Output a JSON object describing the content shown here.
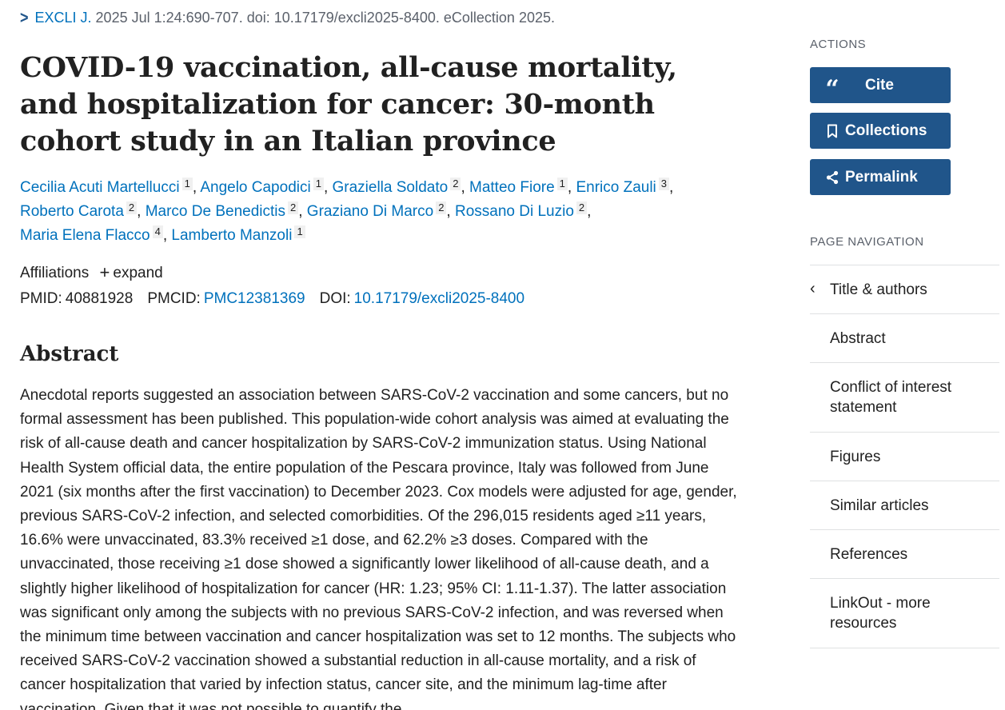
{
  "journal": {
    "name": "EXCLI J.",
    "citation": " 2025 Jul 1:24:690-707. doi: 10.17179/excli2025-8400. eCollection 2025."
  },
  "title": "COVID-19 vaccination, all-cause mortality, and hospitalization for cancer: 30-month cohort study in an Italian province",
  "authors": [
    {
      "name": "Cecilia Acuti Martellucci",
      "aff": "1"
    },
    {
      "name": "Angelo Capodici",
      "aff": "1"
    },
    {
      "name": "Graziella Soldato",
      "aff": "2"
    },
    {
      "name": "Matteo Fiore",
      "aff": "1"
    },
    {
      "name": "Enrico Zauli",
      "aff": "3"
    },
    {
      "name": "Roberto Carota",
      "aff": "2"
    },
    {
      "name": "Marco De Benedictis",
      "aff": "2"
    },
    {
      "name": "Graziano Di Marco",
      "aff": "2"
    },
    {
      "name": "Rossano Di Luzio",
      "aff": "2"
    },
    {
      "name": "Maria Elena Flacco",
      "aff": "4"
    },
    {
      "name": "Lamberto Manzoli",
      "aff": "1"
    }
  ],
  "affiliations": {
    "label": "Affiliations",
    "expand": "expand"
  },
  "ids": {
    "pmid_label": "PMID:",
    "pmid": "40881928",
    "pmcid_label": "PMCID:",
    "pmcid": "PMC12381369",
    "doi_label": "DOI:",
    "doi": "10.17179/excli2025-8400"
  },
  "abstract": {
    "heading": "Abstract",
    "text": "Anecdotal reports suggested an association between SARS-CoV-2 vaccination and some cancers, but no formal assessment has been published. This population-wide cohort analysis was aimed at evaluating the risk of all-cause death and cancer hospitalization by SARS-CoV-2 immunization status. Using National Health System official data, the entire population of the Pescara province, Italy was followed from June 2021 (six months after the first vaccination) to December 2023. Cox models were adjusted for age, gender, previous SARS-CoV-2 infection, and selected comorbidities. Of the 296,015 residents aged ≥11 years, 16.6% were unvaccinated, 83.3% received ≥1 dose, and 62.2% ≥3 doses. Compared with the unvaccinated, those receiving ≥1 dose showed a significantly lower likelihood of all-cause death, and a slightly higher likelihood of hospitalization for cancer (HR: 1.23; 95% CI: 1.11-1.37). The latter association was significant only among the subjects with no previous SARS-CoV-2 infection, and was reversed when the minimum time between vaccination and cancer hospitalization was set to 12 months. The subjects who received SARS-CoV-2 vaccination showed a substantial reduction in all-cause mortality, and a risk of cancer hospitalization that varied by infection status, cancer site, and the minimum lag-time after vaccination. Given that it was not possible to quantify the"
  },
  "sidebar": {
    "actions_heading": "ACTIONS",
    "buttons": {
      "cite": "Cite",
      "collections": "Collections",
      "permalink": "Permalink"
    },
    "nav_heading": "PAGE NAVIGATION",
    "nav_items": [
      "Title & authors",
      "Abstract",
      "Conflict of interest statement",
      "Figures",
      "Similar articles",
      "References",
      "LinkOut - more resources"
    ]
  },
  "colors": {
    "link": "#0071bc",
    "button_bg": "#20558a",
    "muted": "#5b616b"
  },
  "icons": {
    "journal": "chevron-right-icon",
    "cite": "quote-icon",
    "collections": "bookmark-icon",
    "permalink": "share-icon",
    "affiliations": "plus-icon",
    "nav_active": "chevron-left-icon"
  }
}
